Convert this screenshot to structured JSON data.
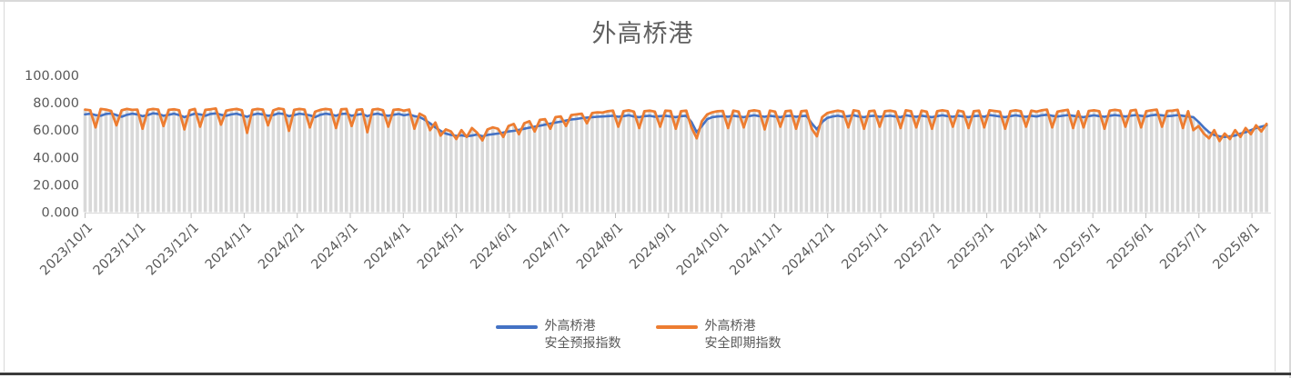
{
  "chart": {
    "title": "外高桥港",
    "y_axis": {
      "labels": [
        "100.000",
        "80.000",
        "60.000",
        "40.000",
        "20.000",
        "0.000"
      ]
    }
  },
  "legend": {
    "items": [
      {
        "line1": "外高桥港",
        "line2": "安全预报指数"
      },
      {
        "line1": "外高桥港",
        "line2": "安全即期指数"
      }
    ]
  },
  "colors": {
    "forecast": "#4472C4",
    "spot": "#ED7D31",
    "drop_lines": "#D9D9D9",
    "axis_line": "#D9D9D9",
    "axis_text": "#595959",
    "title_text": "#616161"
  },
  "chart_data": {
    "type": "line",
    "title": "外高桥港",
    "x_start": "2023/10/1",
    "x_end": "2025/8/11",
    "point_interval_days": 3,
    "x_tick_labels": [
      "2023/10/1",
      "2023/11/1",
      "2023/12/1",
      "2024/1/1",
      "2024/2/1",
      "2024/3/1",
      "2024/4/1",
      "2024/5/1",
      "2024/6/1",
      "2024/7/1",
      "2024/8/1",
      "2024/9/1",
      "2024/10/1",
      "2024/11/1",
      "2024/12/1",
      "2025/1/1",
      "2025/2/1",
      "2025/3/1",
      "2025/4/1",
      "2025/5/1",
      "2025/6/1",
      "2025/7/1",
      "2025/8/1"
    ],
    "ylim": [
      0,
      100
    ],
    "y_ticks": [
      0,
      20,
      40,
      60,
      80,
      100
    ],
    "y_tick_format": "#,##0.000",
    "grid": false,
    "drop_lines": true,
    "legend_position": "bottom",
    "series": [
      {
        "name": "外高桥港安全预报指数",
        "color": "#4472C4",
        "values": [
          71.5,
          72,
          71,
          70.5,
          71.8,
          72.2,
          71,
          69.8,
          71.2,
          72,
          71.5,
          70.2,
          71,
          72.3,
          71.8,
          70.5,
          71.2,
          72,
          71,
          69.5,
          70.8,
          72,
          71.5,
          70.5,
          71.8,
          72.2,
          71.2,
          70.5,
          71.5,
          72,
          70.8,
          69.8,
          71.2,
          72,
          71.5,
          70.5,
          71,
          72.2,
          71.8,
          70.2,
          71,
          72,
          71.5,
          70.8,
          69.5,
          71.2,
          72,
          71.5,
          70.5,
          71.8,
          72,
          70.5,
          71.2,
          71.8,
          70.2,
          71.5,
          72,
          71,
          70.5,
          71.2,
          71.8,
          70.8,
          71.5,
          70.2,
          69.5,
          67.5,
          65,
          62,
          59.5,
          57.5,
          56.5,
          55.8,
          56.2,
          55.5,
          56,
          56.8,
          55.5,
          56.5,
          57,
          57.5,
          58.2,
          59,
          59.5,
          60.2,
          61,
          61.8,
          62.5,
          63.2,
          64,
          64.8,
          65.5,
          66.2,
          67,
          67.8,
          68.2,
          68.8,
          69.2,
          69.5,
          69.8,
          70,
          70.2,
          70.5,
          69.8,
          70.2,
          70.8,
          70,
          69.5,
          70.2,
          70.5,
          69.8,
          70.2,
          70.5,
          70,
          69.5,
          70.2,
          70.5,
          66,
          58.5,
          63,
          68,
          69.5,
          70,
          70.2,
          69.8,
          70.5,
          70,
          69.5,
          70.2,
          70.8,
          70.2,
          69.8,
          70.5,
          70,
          69.5,
          70.2,
          70.5,
          69.8,
          70.2,
          70.5,
          65,
          60.5,
          66,
          69,
          70,
          70.5,
          69.8,
          70.2,
          70.8,
          70,
          69.5,
          70.2,
          70.5,
          69.8,
          70.2,
          70.5,
          70,
          69.5,
          70.8,
          70.2,
          69.8,
          70.5,
          70,
          69.5,
          70.2,
          70.8,
          70.2,
          69.8,
          70.5,
          70,
          69.5,
          70.2,
          70.5,
          69.8,
          71,
          70.5,
          70,
          69.5,
          70.2,
          70.8,
          70.2,
          69.8,
          70.5,
          70,
          70.8,
          71.2,
          70.5,
          70,
          70.5,
          71,
          70.5,
          70,
          69.5,
          70.2,
          70.8,
          70.2,
          69.8,
          70.5,
          71,
          70.5,
          70,
          70.5,
          71,
          70.5,
          70,
          70.8,
          71.2,
          70.8,
          70.2,
          70.5,
          71,
          70.5,
          70,
          69.5,
          66,
          62,
          58.5,
          56.5,
          55.5,
          55,
          55.5,
          56,
          57.5,
          58.5,
          60,
          61.5,
          62.5,
          63.5
        ]
      },
      {
        "name": "外高桥港安全即期指数",
        "color": "#ED7D31",
        "values": [
          75,
          74.5,
          62,
          75.5,
          75,
          74,
          63.5,
          74.5,
          75.5,
          74.8,
          75,
          61,
          74.8,
          75.5,
          75,
          63,
          74.8,
          75.2,
          74.5,
          60.5,
          74.5,
          75.5,
          62.5,
          74.8,
          75.2,
          75.8,
          64,
          74.2,
          75,
          75.5,
          74.5,
          58,
          74.8,
          75.5,
          75,
          63.5,
          74.5,
          75.8,
          75.2,
          59.5,
          74.8,
          75.5,
          75,
          62,
          73.5,
          74.8,
          75.5,
          75,
          61.5,
          75.2,
          75.5,
          63,
          74.8,
          75.2,
          58.5,
          75,
          75.5,
          74.5,
          62.5,
          74.8,
          75.2,
          74.2,
          75,
          61,
          72,
          70,
          60,
          65.5,
          56,
          60.5,
          59,
          53.5,
          60,
          55,
          61.5,
          58,
          52.5,
          60.5,
          62,
          61,
          55,
          63,
          64.5,
          57,
          65,
          66.5,
          59,
          67.5,
          68,
          61,
          69.5,
          70,
          63,
          71,
          71.5,
          72,
          65,
          72.5,
          73,
          72.8,
          73.8,
          74.2,
          62.5,
          73.8,
          74.5,
          73.5,
          61.5,
          73.8,
          74.2,
          73.5,
          62.5,
          74.2,
          74,
          61,
          73.8,
          74.2,
          62,
          54,
          66.5,
          71.5,
          73,
          73.8,
          74,
          61.5,
          74.2,
          73.5,
          62,
          73.8,
          74.5,
          73.8,
          60.5,
          74.2,
          73.5,
          62.5,
          73.8,
          74.2,
          61,
          73.8,
          74.2,
          61,
          55.5,
          69.5,
          72.5,
          73.5,
          74.2,
          73.5,
          62,
          74.5,
          73.8,
          61,
          73.8,
          74.2,
          62.5,
          73.8,
          74.2,
          73.5,
          61.5,
          74.5,
          73.8,
          62,
          74.2,
          73.5,
          61,
          73.8,
          74.5,
          73.8,
          62.5,
          74.2,
          73.5,
          61.5,
          73.8,
          74.2,
          62,
          74.5,
          74,
          73.5,
          61,
          73.8,
          74.5,
          73.8,
          62.5,
          74.2,
          73.5,
          74.5,
          75,
          62,
          73.5,
          74.2,
          74.8,
          61.5,
          73.8,
          62,
          74,
          74.5,
          73.8,
          61,
          74.2,
          74.8,
          74.2,
          62.5,
          74.2,
          74.8,
          62,
          73.8,
          74.5,
          75,
          62.5,
          74,
          74.2,
          74.8,
          61.5,
          73.8,
          60,
          63,
          57.5,
          54,
          60,
          52,
          57.5,
          53.5,
          60,
          55,
          61.5,
          57,
          63.5,
          59,
          64.5
        ]
      }
    ]
  }
}
